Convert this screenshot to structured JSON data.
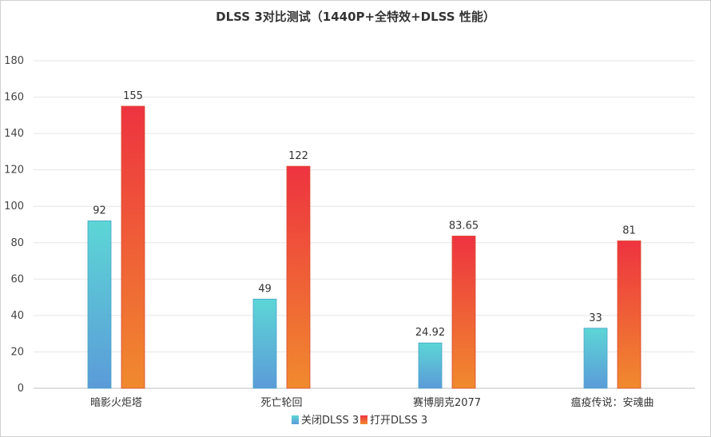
{
  "chart_data": {
    "type": "bar",
    "title": "DLSS 3对比测试（1440P+全特效+DLSS 性能）",
    "xlabel": "",
    "ylabel": "",
    "categories": [
      "暗影火炬塔",
      "死亡轮回",
      "赛博朋克2077",
      "瘟疫传说：安魂曲"
    ],
    "series": [
      {
        "name": "关闭DLSS 3",
        "values": [
          92,
          49,
          24.92,
          33
        ],
        "labels": [
          "92",
          "49",
          "24.92",
          "33"
        ],
        "color_top": "#5cd6d6",
        "color_bottom": "#5b9bd8"
      },
      {
        "name": "打开DLSS 3",
        "values": [
          155,
          122,
          83.65,
          81
        ],
        "labels": [
          "155",
          "122",
          "83.65",
          "81"
        ],
        "color_top": "#ee3340",
        "color_bottom": "#f08a2e"
      }
    ],
    "ylim": [
      0,
      180
    ],
    "yticks": [
      "0",
      "20",
      "40",
      "60",
      "80",
      "100",
      "120",
      "140",
      "160",
      "180"
    ],
    "grid": true,
    "legend": "bottom"
  }
}
